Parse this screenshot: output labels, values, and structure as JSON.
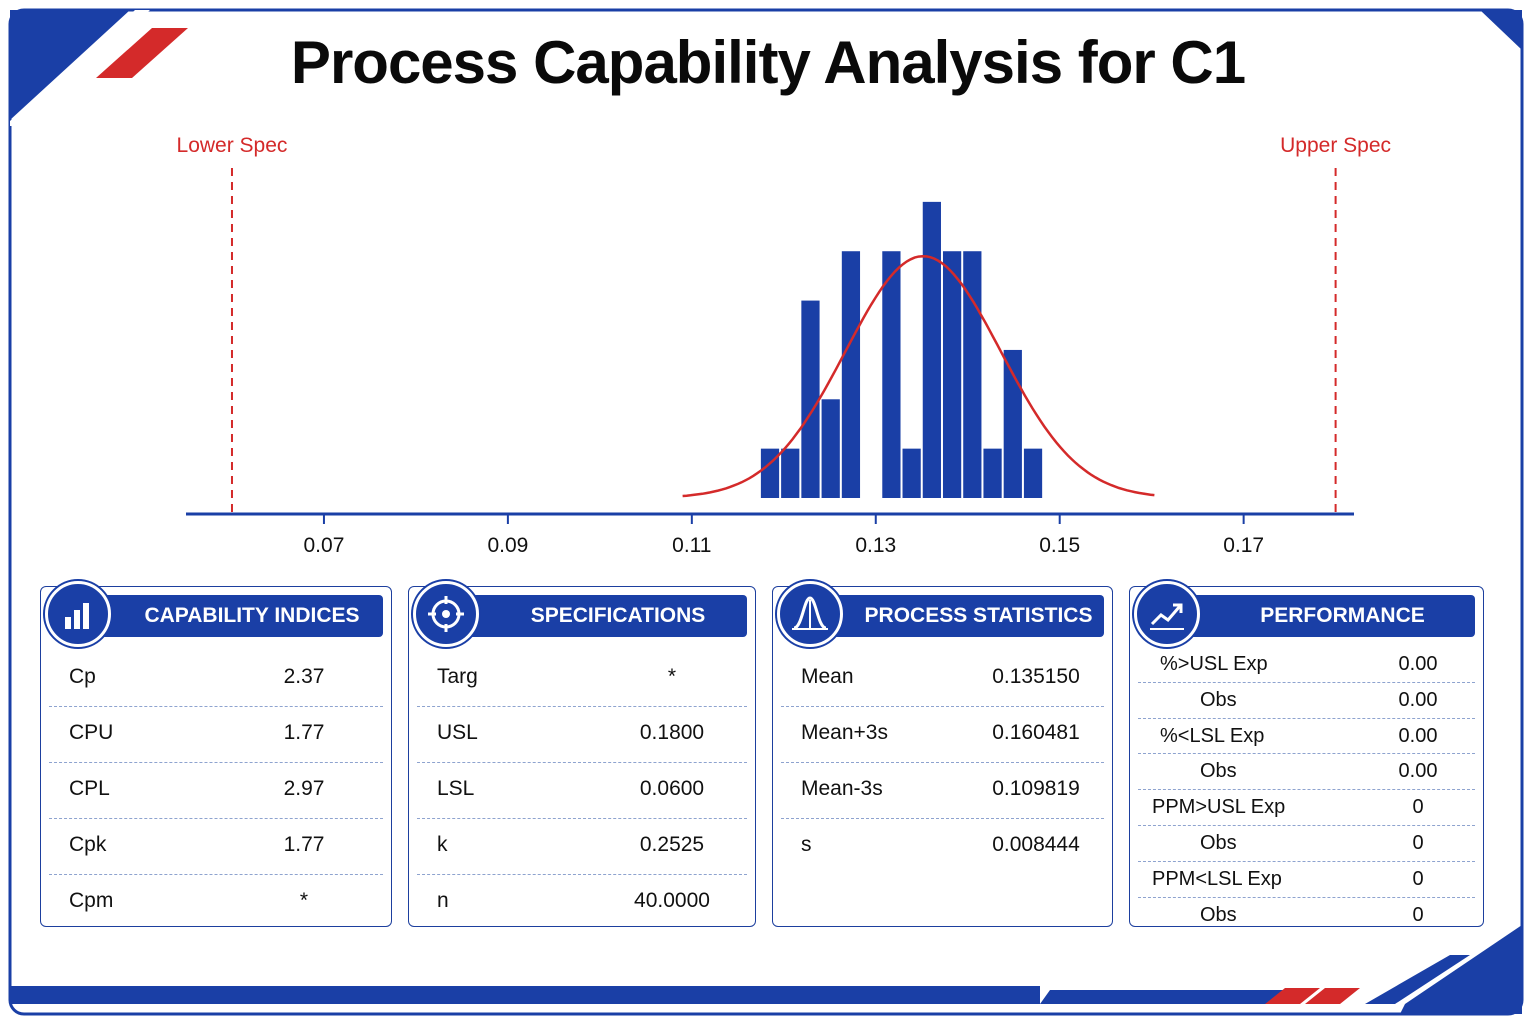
{
  "title": "Process Capability Analysis for C1",
  "colors": {
    "primary": "#1a3fa6",
    "spec_line": "#d42a2a",
    "fit_curve": "#d42a2a"
  },
  "chart_data": {
    "type": "bar",
    "subtype": "histogram-with-normal-fit",
    "spec_labels": {
      "lower": "Lower Spec",
      "upper": "Upper Spec"
    },
    "lsl": 0.06,
    "usl": 0.18,
    "xlim": [
      0.055,
      0.182
    ],
    "xticks": [
      "0.07",
      "0.09",
      "0.11",
      "0.13",
      "0.15",
      "0.17"
    ],
    "bin_width": 0.0022,
    "bins": [
      {
        "x": 0.1185,
        "count": 1
      },
      {
        "x": 0.1207,
        "count": 1
      },
      {
        "x": 0.1229,
        "count": 4
      },
      {
        "x": 0.1251,
        "count": 2
      },
      {
        "x": 0.1273,
        "count": 5
      },
      {
        "x": 0.1317,
        "count": 5
      },
      {
        "x": 0.1339,
        "count": 1
      },
      {
        "x": 0.1361,
        "count": 6
      },
      {
        "x": 0.1383,
        "count": 5
      },
      {
        "x": 0.1405,
        "count": 5
      },
      {
        "x": 0.1427,
        "count": 1
      },
      {
        "x": 0.1449,
        "count": 3
      },
      {
        "x": 0.1471,
        "count": 1
      }
    ],
    "ylim": [
      0,
      6.2
    ],
    "fit": {
      "mean": 0.13515,
      "sd": 0.008444,
      "peak": 4.9,
      "x_range": [
        0.109,
        0.1603
      ]
    }
  },
  "panels": {
    "capability": {
      "header": "CAPABILITY INDICES",
      "rows": [
        {
          "label": "Cp",
          "value": "2.37"
        },
        {
          "label": "CPU",
          "value": "1.77"
        },
        {
          "label": "CPL",
          "value": "2.97"
        },
        {
          "label": "Cpk",
          "value": "1.77"
        },
        {
          "label": "Cpm",
          "value": "*"
        }
      ]
    },
    "specifications": {
      "header": "SPECIFICATIONS",
      "rows": [
        {
          "label": "Targ",
          "value": "*"
        },
        {
          "label": "USL",
          "value": "0.1800"
        },
        {
          "label": "LSL",
          "value": "0.0600"
        },
        {
          "label": "k",
          "value": "0.2525"
        },
        {
          "label": "n",
          "value": "40.0000"
        }
      ]
    },
    "statistics": {
      "header": "PROCESS STATISTICS",
      "rows": [
        {
          "label": "Mean",
          "value": "0.135150"
        },
        {
          "label": "Mean+3s",
          "value": "0.160481"
        },
        {
          "label": "Mean-3s",
          "value": "0.109819"
        },
        {
          "label": "s",
          "value": "0.008444"
        }
      ]
    },
    "performance": {
      "header": "PERFORMANCE",
      "rows": [
        {
          "label": "%>USL Exp",
          "value": "0.00"
        },
        {
          "label": "Obs",
          "value": "0.00"
        },
        {
          "label": "%<LSL Exp",
          "value": "0.00"
        },
        {
          "label": "Obs",
          "value": "0.00"
        },
        {
          "label": "PPM>USL Exp",
          "value": "0"
        },
        {
          "label": "Obs",
          "value": "0"
        },
        {
          "label": "PPM<LSL Exp",
          "value": "0"
        },
        {
          "label": "Obs",
          "value": "0"
        }
      ]
    }
  }
}
